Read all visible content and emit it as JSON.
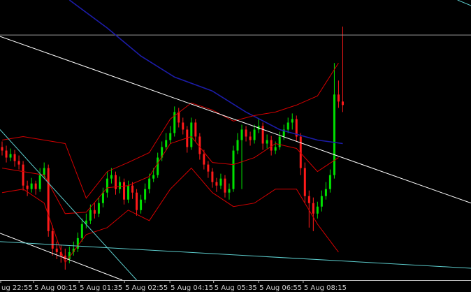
{
  "chart_data": {
    "type": "candlestick",
    "xlim": [
      -0.5,
      111.5
    ],
    "ylim": [
      0,
      400
    ],
    "xticks": [
      {
        "value": -0.33,
        "label": "ug 22:55"
      },
      {
        "value": 7.5,
        "label": "5 Aug 00:15"
      },
      {
        "value": 18.3,
        "label": "5 Aug 01:35"
      },
      {
        "value": 29.1,
        "label": "5 Aug 02:55"
      },
      {
        "value": 39.9,
        "label": "5 Aug 04:15"
      },
      {
        "value": 50.3,
        "label": "5 Aug 05:35"
      },
      {
        "value": 61,
        "label": "5 Aug 06:55"
      },
      {
        "value": 71.6,
        "label": "5 Aug 08:15"
      }
    ],
    "up_color": "#00e000",
    "down_color": "#ff1a1a",
    "open": [
      190,
      185,
      175,
      180,
      170,
      165,
      135,
      130,
      138,
      130,
      150,
      160,
      70,
      45,
      40,
      35,
      30,
      40,
      45,
      60,
      80,
      85,
      100,
      95,
      110,
      125,
      145,
      150,
      130,
      140,
      115,
      135,
      125,
      100,
      115,
      130,
      145,
      150,
      175,
      190,
      200,
      210,
      240,
      225,
      215,
      190,
      225,
      205,
      180,
      165,
      155,
      140,
      135,
      145,
      125,
      130,
      185,
      200,
      215,
      205,
      200,
      215,
      220,
      195,
      200,
      185,
      190,
      205,
      215,
      225,
      230,
      205,
      160,
      120,
      110,
      95,
      105,
      120,
      130,
      150,
      265,
      255
    ],
    "high": [
      198,
      192,
      188,
      186,
      178,
      170,
      142,
      146,
      142,
      160,
      168,
      165,
      78,
      55,
      50,
      45,
      48,
      55,
      68,
      88,
      95,
      108,
      110,
      118,
      132,
      155,
      160,
      155,
      148,
      145,
      142,
      140,
      130,
      122,
      138,
      152,
      160,
      182,
      198,
      210,
      220,
      248,
      246,
      232,
      220,
      232,
      230,
      210,
      186,
      170,
      160,
      146,
      152,
      150,
      138,
      192,
      210,
      222,
      220,
      212,
      222,
      230,
      225,
      208,
      206,
      198,
      212,
      222,
      232,
      238,
      235,
      210,
      168,
      128,
      118,
      112,
      128,
      140,
      158,
      310,
      285,
      362
    ],
    "low": [
      178,
      168,
      170,
      162,
      158,
      128,
      120,
      125,
      122,
      126,
      145,
      62,
      35,
      30,
      25,
      15,
      24,
      35,
      40,
      55,
      74,
      80,
      88,
      90,
      104,
      118,
      138,
      122,
      124,
      108,
      110,
      116,
      92,
      95,
      110,
      124,
      140,
      146,
      170,
      185,
      195,
      205,
      218,
      208,
      182,
      186,
      198,
      172,
      158,
      146,
      132,
      126,
      130,
      118,
      115,
      126,
      180,
      130,
      198,
      192,
      195,
      210,
      186,
      188,
      178,
      180,
      186,
      200,
      210,
      215,
      198,
      150,
      110,
      75,
      70,
      88,
      98,
      115,
      125,
      145,
      246,
      240
    ],
    "close": [
      185,
      175,
      180,
      170,
      165,
      135,
      130,
      138,
      130,
      150,
      160,
      70,
      45,
      40,
      35,
      30,
      40,
      45,
      60,
      80,
      85,
      100,
      95,
      110,
      125,
      145,
      150,
      130,
      140,
      115,
      135,
      125,
      100,
      115,
      130,
      145,
      150,
      175,
      190,
      200,
      210,
      240,
      225,
      215,
      190,
      225,
      205,
      180,
      165,
      155,
      140,
      135,
      145,
      125,
      130,
      185,
      200,
      215,
      205,
      200,
      215,
      220,
      195,
      200,
      185,
      190,
      205,
      215,
      225,
      230,
      205,
      160,
      120,
      110,
      95,
      105,
      120,
      130,
      150,
      265,
      255,
      250
    ],
    "overlays": [
      {
        "color": "#999999",
        "x": [
          -0.5,
          111.5
        ],
        "values": [
          350,
          350
        ]
      },
      {
        "color": "#1c1ca8",
        "x": [
          16,
          25,
          33,
          41,
          50,
          58,
          66,
          75,
          81
        ],
        "values": [
          400,
          360,
          320,
          290,
          270,
          240,
          215,
          200,
          195
        ]
      },
      {
        "color": "#d40000",
        "x": [
          0,
          5,
          10,
          15,
          20,
          25,
          30,
          35,
          40,
          45,
          50,
          55,
          60,
          65,
          70,
          75,
          80
        ],
        "values": [
          200,
          205,
          200,
          195,
          117,
          155,
          168,
          182,
          230,
          253,
          243,
          227,
          235,
          240,
          250,
          263,
          310
        ]
      },
      {
        "color": "#d40000",
        "x": [
          0,
          5,
          10,
          15,
          20,
          25,
          30,
          35,
          40,
          45,
          50,
          55,
          60,
          65,
          70,
          75,
          80
        ],
        "values": [
          160,
          155,
          150,
          95,
          97,
          132,
          135,
          148,
          195,
          205,
          168,
          165,
          175,
          195,
          188,
          155,
          175
        ]
      },
      {
        "color": "#d40000",
        "x": [
          0,
          5,
          10,
          15,
          20,
          25,
          30,
          35,
          40,
          45,
          50,
          55,
          60,
          65,
          70,
          75,
          80
        ],
        "values": [
          125,
          130,
          110,
          25,
          65,
          75,
          100,
          85,
          130,
          160,
          125,
          105,
          110,
          130,
          130,
          80,
          40
        ]
      },
      {
        "color": "#ffffff",
        "x": [
          -0.5,
          111.5
        ],
        "values": [
          348,
          110
        ]
      },
      {
        "color": "#ffffff",
        "x": [
          -0.5,
          28.6
        ],
        "values": [
          67,
          0
        ]
      },
      {
        "color": "#5ccccc",
        "x": [
          -0.5,
          32
        ],
        "values": [
          215,
          0
        ]
      },
      {
        "color": "#5ccccc",
        "x": [
          -0.5,
          111.5
        ],
        "values": [
          55,
          17
        ]
      },
      {
        "color": "#5ccccc",
        "x": [
          108.3,
          111.5
        ],
        "values": [
          400,
          392
        ]
      }
    ]
  }
}
